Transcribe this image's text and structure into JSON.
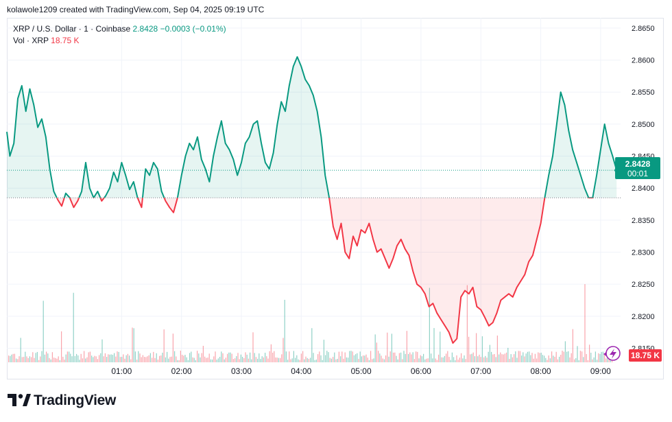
{
  "header": {
    "created_by": "kolawole1209 created with TradingView.com, Sep 04, 2025 09:19 UTC"
  },
  "legend": {
    "symbol": "XRP / U.S. Dollar · 1 · Coinbase",
    "last": "2.8428",
    "change": "−0.0003 (−0.01%)",
    "vol_label": "Vol · XRP",
    "vol_value": "18.75 K"
  },
  "badges": {
    "price": "2.8428",
    "countdown": "00:01",
    "volume": "18.75 K"
  },
  "logo": {
    "text": "TradingView"
  },
  "colors": {
    "up": "#089981",
    "down": "#f23645",
    "grid": "#f0f3fa",
    "text": "#131722"
  },
  "chart_data": {
    "type": "line",
    "title": "XRP / U.S. Dollar · 1 · Coinbase",
    "reference_price": 2.8385,
    "last_price": 2.8428,
    "y_ticks": [
      "2.8150",
      "2.8200",
      "2.8250",
      "2.8300",
      "2.8350",
      "2.8400",
      "2.8450",
      "2.8500",
      "2.8550",
      "2.8600",
      "2.8650"
    ],
    "ylim": [
      2.8128,
      2.8666
    ],
    "x_ticks": [
      "01:00",
      "02:00",
      "03:00",
      "04:00",
      "05:00",
      "06:00",
      "07:00",
      "08:00",
      "09:00"
    ],
    "x_tick_minutes": [
      60,
      120,
      180,
      240,
      300,
      360,
      420,
      480,
      540
    ],
    "xlim": [
      -55,
      560
    ],
    "series": [
      {
        "values_time_minutes": [
          -55,
          -52,
          -48,
          -44,
          -40,
          -36,
          -32,
          -28,
          -24,
          -20,
          -16,
          -12,
          -8,
          -4,
          0,
          4,
          8,
          12,
          16,
          20,
          24,
          28,
          32,
          36,
          40,
          44,
          48,
          52,
          56,
          60,
          64,
          68,
          72,
          76,
          80,
          84,
          88,
          92,
          96,
          100,
          104,
          108,
          112,
          116,
          120,
          124,
          128,
          132,
          136,
          140,
          144,
          148,
          152,
          156,
          160,
          164,
          168,
          172,
          176,
          180,
          184,
          188,
          192,
          196,
          200,
          204,
          208,
          212,
          216,
          220,
          224,
          228,
          232,
          236,
          240,
          244,
          248,
          252,
          256,
          260,
          264,
          268,
          272,
          276,
          280,
          284,
          288,
          292,
          296,
          300,
          304,
          308,
          312,
          316,
          320,
          324,
          328,
          332,
          336,
          340,
          344,
          348,
          352,
          356,
          360,
          364,
          368,
          372,
          376,
          380,
          384,
          388,
          392,
          396,
          400,
          404,
          408,
          412,
          416,
          420,
          424,
          428,
          432,
          436,
          440,
          444,
          448,
          452,
          456,
          460,
          464,
          468,
          472,
          476,
          480,
          484,
          488,
          492,
          496,
          500,
          504,
          508,
          512,
          516,
          520,
          524,
          528,
          532,
          536,
          540,
          544,
          548,
          552,
          556
        ],
        "values": [
          2.8488,
          2.845,
          2.847,
          2.854,
          2.856,
          2.852,
          2.8555,
          2.853,
          2.8495,
          2.8508,
          2.848,
          2.843,
          2.8395,
          2.8382,
          2.8372,
          2.8392,
          2.8385,
          2.837,
          2.838,
          2.8395,
          2.844,
          2.84,
          2.8385,
          2.8395,
          2.838,
          2.8388,
          2.84,
          2.8425,
          2.841,
          2.844,
          2.842,
          2.8398,
          2.841,
          2.8385,
          2.837,
          2.843,
          2.842,
          2.844,
          2.843,
          2.8395,
          2.838,
          2.837,
          2.8362,
          2.8385,
          2.842,
          2.845,
          2.847,
          2.846,
          2.848,
          2.8445,
          2.843,
          2.841,
          2.845,
          2.848,
          2.8505,
          2.847,
          2.846,
          2.8445,
          2.842,
          2.844,
          2.847,
          2.848,
          2.85,
          2.8505,
          2.847,
          2.844,
          2.843,
          2.8455,
          2.85,
          2.8535,
          2.852,
          2.856,
          2.859,
          2.8605,
          2.859,
          2.857,
          2.856,
          2.8545,
          2.852,
          2.848,
          2.842,
          2.8385,
          2.834,
          2.832,
          2.8345,
          2.83,
          2.829,
          2.8325,
          2.831,
          2.8335,
          2.833,
          2.8345,
          2.832,
          2.83,
          2.8305,
          2.829,
          2.8275,
          2.829,
          2.831,
          2.832,
          2.8305,
          2.8295,
          2.827,
          2.825,
          2.8245,
          2.8235,
          2.8215,
          2.822,
          2.8205,
          2.8195,
          2.8185,
          2.8175,
          2.8158,
          2.8165,
          2.823,
          2.824,
          2.8235,
          2.8245,
          2.8215,
          2.821,
          2.8198,
          2.8185,
          2.819,
          2.8205,
          2.8225,
          2.823,
          2.8235,
          2.823,
          2.8245,
          2.8255,
          2.8265,
          2.8285,
          2.8295,
          2.832,
          2.8345,
          2.8385,
          2.842,
          2.845,
          2.85,
          2.855,
          2.853,
          2.849,
          2.846,
          2.844,
          2.842,
          2.84,
          2.8385,
          2.8385,
          2.842,
          2.846,
          2.85,
          2.847,
          2.845,
          2.8428
        ]
      }
    ],
    "volume": {
      "label": "Vol · XRP",
      "last": "18.75 K"
    }
  }
}
